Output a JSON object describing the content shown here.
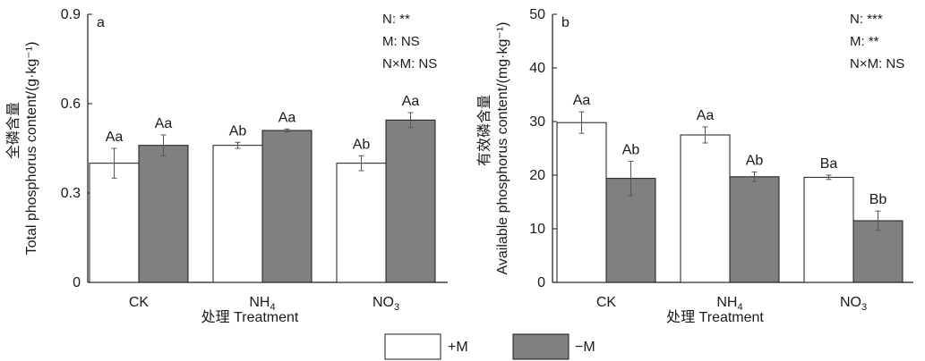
{
  "colors": {
    "plus_m": "#ffffff",
    "minus_m": "#808080",
    "axis": "#1a1a1a",
    "errorbar": "#555555"
  },
  "legend": {
    "items": [
      {
        "label": "+M",
        "color": "#ffffff"
      },
      {
        "label": "−M",
        "color": "#808080"
      }
    ]
  },
  "chart_data": [
    {
      "type": "bar",
      "panel": "a",
      "ylabel_cn": "全磷含量",
      "ylabel": "Total phosphorus content/(g·kg⁻¹)",
      "xlabel": "处理 Treatment",
      "categories": [
        "CK",
        "NH4",
        "NO3"
      ],
      "category_labels": [
        {
          "base": "CK",
          "sub": ""
        },
        {
          "base": "NH",
          "sub": "4"
        },
        {
          "base": "NO",
          "sub": "3"
        }
      ],
      "ylim": [
        0,
        0.9
      ],
      "yticks": [
        "0",
        "0.3",
        "0.6",
        "0.9"
      ],
      "series": [
        {
          "name": "+M",
          "values": [
            0.4,
            0.46,
            0.4
          ],
          "errors": [
            0.05,
            0.01,
            0.025
          ],
          "letters": [
            "Aa",
            "Ab",
            "Ab"
          ]
        },
        {
          "name": "−M",
          "values": [
            0.46,
            0.51,
            0.545
          ],
          "errors": [
            0.035,
            0.005,
            0.025
          ],
          "letters": [
            "Aa",
            "Aa",
            "Aa"
          ]
        }
      ],
      "stats": [
        "N: **",
        "M: NS",
        "N×M: NS"
      ]
    },
    {
      "type": "bar",
      "panel": "b",
      "ylabel_cn": "有效磷含量",
      "ylabel": "Available phosphorus content/(mg·kg⁻¹)",
      "xlabel": "处理 Treatment",
      "categories": [
        "CK",
        "NH4",
        "NO3"
      ],
      "category_labels": [
        {
          "base": "CK",
          "sub": ""
        },
        {
          "base": "NH",
          "sub": "4"
        },
        {
          "base": "NO",
          "sub": "3"
        }
      ],
      "ylim": [
        0,
        50
      ],
      "yticks": [
        "0",
        "10",
        "20",
        "30",
        "40",
        "50"
      ],
      "series": [
        {
          "name": "+M",
          "values": [
            29.8,
            27.5,
            19.6
          ],
          "errors": [
            2.0,
            1.5,
            0.4
          ],
          "letters": [
            "Aa",
            "Aa",
            "Ba"
          ]
        },
        {
          "name": "−M",
          "values": [
            19.4,
            19.7,
            11.5
          ],
          "errors": [
            3.2,
            0.9,
            1.8
          ],
          "letters": [
            "Ab",
            "Ab",
            "Bb"
          ]
        }
      ],
      "stats": [
        "N: ***",
        "M: **",
        "N×M: NS"
      ]
    }
  ]
}
